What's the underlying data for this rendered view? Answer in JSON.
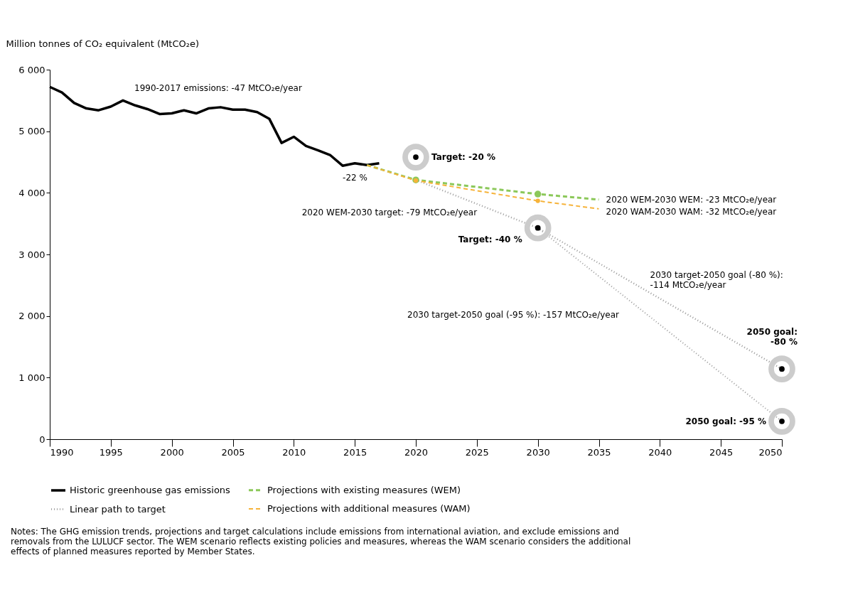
{
  "chart_data": {
    "type": "line",
    "ylabel": "Million tonnes of CO₂ equivalent (MtCO₂e)",
    "xlim": [
      1990,
      2050
    ],
    "xticks": [
      1990,
      1995,
      2000,
      2005,
      2010,
      2015,
      2020,
      2025,
      2030,
      2035,
      2040,
      2045,
      2050
    ],
    "ylim": [
      0,
      6000
    ],
    "yticks": [
      0,
      {
        "value": 1000,
        "label": "1 000"
      },
      {
        "value": 2000,
        "label": "2 000"
      },
      {
        "value": 3000,
        "label": "3 000"
      },
      {
        "value": 4000,
        "label": "4 000"
      },
      {
        "value": 5000,
        "label": "5 000"
      },
      {
        "value": 6000,
        "label": "6 000"
      }
    ],
    "grid": false,
    "legend": "bottom",
    "series": [
      {
        "name": "Historic greenhouse gas emissions",
        "color": "#000000",
        "line_style": "solid",
        "x": [
          1990,
          1991,
          1992,
          1993,
          1994,
          1995,
          1996,
          1997,
          1998,
          1999,
          2000,
          2001,
          2002,
          2003,
          2004,
          2005,
          2006,
          2007,
          2008,
          2009,
          2010,
          2011,
          2012,
          2013,
          2014,
          2015,
          2016,
          2017
        ],
        "values": [
          5720,
          5630,
          5460,
          5370,
          5340,
          5400,
          5500,
          5420,
          5360,
          5280,
          5290,
          5340,
          5290,
          5370,
          5390,
          5350,
          5350,
          5310,
          5200,
          4810,
          4910,
          4760,
          4690,
          4610,
          4440,
          4480,
          4450,
          4480
        ]
      },
      {
        "name": "Projections with existing measures (WEM)",
        "color": "#8cc85a",
        "line_style": "dashed",
        "x": [
          2016,
          2020,
          2030,
          2035
        ],
        "values": [
          4450,
          4210,
          3980,
          3890
        ]
      },
      {
        "name": "Linear path to target",
        "color": "#999999",
        "line_style": "dotted",
        "x": [
          2020,
          2030,
          2050
        ],
        "values": [
          4210,
          3430,
          1140
        ]
      },
      {
        "name": "Projections with additional measures (WAM)",
        "color": "#f6b33a",
        "line_style": "dashed",
        "x": [
          2016,
          2020,
          2030,
          2035
        ],
        "values": [
          4450,
          4200,
          3870,
          3740
        ]
      },
      {
        "color": "#999999",
        "line_style": "dotted",
        "x": [
          2030,
          2050
        ],
        "values": [
          3430,
          290
        ]
      },
      {
        "type": "scatter",
        "color": "#8cc85a",
        "marker": "circle",
        "x": [
          2020,
          2030
        ],
        "values": [
          4210,
          3980
        ]
      },
      {
        "type": "scatter",
        "color": "#f6b33a",
        "marker": "circle",
        "x": [
          2020,
          2030
        ],
        "values": [
          4200,
          3870
        ]
      },
      {
        "type": "scatter",
        "color": "#000000",
        "marker": "circle",
        "x": [
          2020,
          2030,
          2050,
          2050
        ],
        "values": [
          4580,
          3430,
          1140,
          290
        ]
      }
    ],
    "annotations": [
      "1990-2017 emissions: -47 MtCO₂e/year",
      {
        "text": "-22 %",
        "x": 2017,
        "y": 4480
      },
      {
        "text": "Target: -20 %",
        "x": 2020,
        "y": 4580
      },
      "2020 WEM-2030 target: -79 MtCO₂e/year",
      {
        "text": "2020 WEM-2030 WEM: -23 MtCO₂e/year",
        "x": 2035,
        "y": 3890
      },
      {
        "text": "2020 WAM-2030 WAM: -32 MtCO₂e/year",
        "x": 2035,
        "y": 3740
      },
      {
        "text": "Target: -40 %",
        "x": 2030,
        "y": 3430
      },
      "2030 target-2050 goal (-80 %):\n-114 MtCO₂e/year",
      "2030 target-2050 goal (-95 %): -157 MtCO₂e/year",
      {
        "text": "2050 goal:\n-80 %",
        "x": 2050,
        "y": 1140
      },
      {
        "text": "2050 goal: -95 %",
        "x": 2050,
        "y": 290
      },
      "Notes: The GHG emission trends, projections and target calculations include emissions from international aviation, and exclude emissions and removals from the LULUCF sector. The WEM scenario reflects existing policies and measures, whereas the WAM scenario considers the additional effects of planned measures reported by Member States."
    ]
  }
}
